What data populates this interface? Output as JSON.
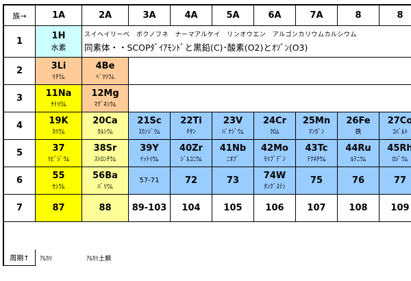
{
  "colors": {
    "alkali": "#ffff00",
    "alkaline_earth": "#ffff99",
    "light": "#ffcc99",
    "hydrogen": "#ccffff",
    "transition": "#99ccff",
    "empty": "#ffffff"
  },
  "header": {
    "corner": "族→",
    "groups": [
      "1A",
      "2A",
      "3A",
      "4A",
      "5A",
      "6A",
      "7A",
      "8",
      "8"
    ]
  },
  "row1": {
    "label": "1",
    "h_symbol": "1H",
    "h_name": "水素",
    "line1": "スイヘイリーベ　ボクノフネ　ナーマアルケイ　リンオウエン　アルゴンカリウムカルシウム",
    "line2": "同素体・・SCOPﾀﾞｲｱﾓﾝﾄﾞと黒鉛(C)･酸素(O2)とｵｿﾞﾝ(O3)"
  },
  "rows": [
    {
      "label": "2",
      "cells": [
        {
          "sym": "3Li",
          "name": "ﾘﾁｳﾑ",
          "color": "light"
        },
        {
          "sym": "4Be",
          "name": "ﾍﾞﾘﾘｳﾑ",
          "color": "light"
        },
        {
          "sym": "",
          "name": "",
          "color": "empty",
          "merge": 7
        }
      ]
    },
    {
      "label": "3",
      "cells": [
        {
          "sym": "11Na",
          "name": "ﾅﾄﾘｳﾑ",
          "color": "alkali"
        },
        {
          "sym": "12Mg",
          "name": "ﾏｸﾞﾈｼｳﾑ",
          "color": "light"
        },
        {
          "sym": "",
          "name": "",
          "color": "empty",
          "merge": 7
        }
      ]
    },
    {
      "label": "4",
      "cells": [
        {
          "sym": "19K",
          "name": "ｶﾘｳﾑ",
          "color": "alkali"
        },
        {
          "sym": "20Ca",
          "name": "ｶﾙｼｳﾑ",
          "color": "alkaline_earth"
        },
        {
          "sym": "21Sc",
          "name": "ｽｶﾝｼﾞｳﾑ",
          "color": "transition"
        },
        {
          "sym": "22Ti",
          "name": "ﾁﾀﾝ",
          "color": "transition"
        },
        {
          "sym": "23V",
          "name": "ﾊﾞﾅｼﾞｳﾑ",
          "color": "transition"
        },
        {
          "sym": "24Cr",
          "name": "ｸﾛﾑ",
          "color": "transition"
        },
        {
          "sym": "25Mn",
          "name": "ﾏﾝｶﾞﾝ",
          "color": "transition"
        },
        {
          "sym": "26Fe",
          "name": "鉄",
          "color": "transition"
        },
        {
          "sym": "27Co",
          "name": "ｺﾊﾞﾙﾄ",
          "color": "transition"
        }
      ]
    },
    {
      "label": "5",
      "cells": [
        {
          "sym": "37",
          "name": "ﾘﾋﾞｼﾞｳﾑ",
          "color": "alkali"
        },
        {
          "sym": "38Sr",
          "name": "ｽﾄﾛﾝﾁｳﾑ",
          "color": "alkaline_earth"
        },
        {
          "sym": "39Y",
          "name": "ｲｯﾄﾘｳﾑ",
          "color": "transition"
        },
        {
          "sym": "40Zr",
          "name": "ｼﾞﾙｺﾆｳﾑ",
          "color": "transition"
        },
        {
          "sym": "41Nb",
          "name": "ﾆｵﾌﾞ",
          "color": "transition"
        },
        {
          "sym": "42Mo",
          "name": "ﾓﾘﾌﾞﾃﾞﾝ",
          "color": "transition"
        },
        {
          "sym": "43Tc",
          "name": "ﾃｸﾈﾁｳﾑ",
          "color": "transition"
        },
        {
          "sym": "44Ru",
          "name": "ﾙﾃﾆｳﾑ",
          "color": "transition"
        },
        {
          "sym": "45Rh",
          "name": "ﾛｼﾞｳﾑ",
          "color": "transition"
        }
      ]
    },
    {
      "label": "6",
      "cells": [
        {
          "sym": "55",
          "name": "ｾｼｳﾑ",
          "color": "alkali"
        },
        {
          "sym": "56Ba",
          "name": "ﾊﾞﾘｳﾑ",
          "color": "alkaline_earth"
        },
        {
          "sym": "",
          "name": "57-71",
          "color": "transition",
          "plain": true
        },
        {
          "sym": "72",
          "name": "",
          "color": "transition"
        },
        {
          "sym": "73",
          "name": "",
          "color": "transition"
        },
        {
          "sym": "74W",
          "name": "ﾀﾝｸﾞｽﾃﾝ",
          "color": "transition"
        },
        {
          "sym": "75",
          "name": "",
          "color": "transition"
        },
        {
          "sym": "76",
          "name": "",
          "color": "transition"
        },
        {
          "sym": "77",
          "name": "",
          "color": "transition"
        }
      ]
    },
    {
      "label": "7",
      "cells": [
        {
          "sym": "87",
          "name": "",
          "color": "alkali"
        },
        {
          "sym": "88",
          "name": "",
          "color": "alkaline_earth"
        },
        {
          "sym": "89-103",
          "name": "",
          "color": "empty"
        },
        {
          "sym": "104",
          "name": "",
          "color": "empty"
        },
        {
          "sym": "105",
          "name": "",
          "color": "empty"
        },
        {
          "sym": "106",
          "name": "",
          "color": "empty"
        },
        {
          "sym": "107",
          "name": "",
          "color": "empty"
        },
        {
          "sym": "108",
          "name": "",
          "color": "empty"
        },
        {
          "sym": "109",
          "name": "",
          "color": "empty"
        }
      ]
    }
  ],
  "footer": {
    "corner": "周期↑",
    "notes": [
      "ｱﾙｶﾘ",
      "ｱﾙｶﾘ土類"
    ]
  }
}
